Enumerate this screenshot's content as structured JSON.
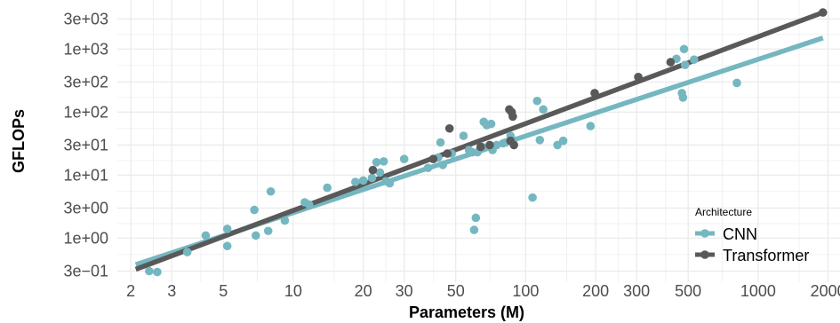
{
  "chart_data": {
    "type": "scatter",
    "xlabel": "Parameters (M)",
    "ylabel": "GFLOPs",
    "x_scale": "log",
    "y_scale": "log",
    "xlim": [
      1.75,
      2250
    ],
    "ylim": [
      0.2,
      6000
    ],
    "grid": true,
    "legend_title": "Architecture",
    "legend_position": "bottom-right",
    "x_ticks": [
      {
        "value": 2,
        "label": "2"
      },
      {
        "value": 3,
        "label": "3"
      },
      {
        "value": 5,
        "label": "5"
      },
      {
        "value": 10,
        "label": "10"
      },
      {
        "value": 20,
        "label": "20"
      },
      {
        "value": 30,
        "label": "30"
      },
      {
        "value": 50,
        "label": "50"
      },
      {
        "value": 100,
        "label": "100"
      },
      {
        "value": 200,
        "label": "200"
      },
      {
        "value": 300,
        "label": "300"
      },
      {
        "value": 500,
        "label": "500"
      },
      {
        "value": 1000,
        "label": "1000"
      },
      {
        "value": 2000,
        "label": "2000"
      }
    ],
    "y_ticks": [
      {
        "value": 0.3,
        "label": "3e−01"
      },
      {
        "value": 1,
        "label": "1e+00"
      },
      {
        "value": 3,
        "label": "3e+00"
      },
      {
        "value": 10,
        "label": "1e+01"
      },
      {
        "value": 30,
        "label": "3e+01"
      },
      {
        "value": 100,
        "label": "1e+02"
      },
      {
        "value": 300,
        "label": "3e+02"
      },
      {
        "value": 1000,
        "label": "1e+03"
      },
      {
        "value": 3000,
        "label": "3e+03"
      }
    ],
    "series": [
      {
        "name": "CNN",
        "color": "#75b7c0",
        "trend": [
          [
            2.1,
            0.38
          ],
          [
            1900,
            1500
          ]
        ],
        "points": [
          [
            2.4,
            0.3
          ],
          [
            2.6,
            0.29
          ],
          [
            3.5,
            0.6
          ],
          [
            4.2,
            1.1
          ],
          [
            5.2,
            1.4
          ],
          [
            5.2,
            0.75
          ],
          [
            6.8,
            2.8
          ],
          [
            6.9,
            1.1
          ],
          [
            7.8,
            1.3
          ],
          [
            8.0,
            5.5
          ],
          [
            9.2,
            1.9
          ],
          [
            11.2,
            3.7
          ],
          [
            11.7,
            3.4
          ],
          [
            14.0,
            6.3
          ],
          [
            18.5,
            7.8
          ],
          [
            20.0,
            8.2
          ],
          [
            21.8,
            9.0
          ],
          [
            22.8,
            16.0
          ],
          [
            23.6,
            11.0
          ],
          [
            24.5,
            16.5
          ],
          [
            25.0,
            8.0
          ],
          [
            26.0,
            7.4
          ],
          [
            30.0,
            18.0
          ],
          [
            38.0,
            13.0
          ],
          [
            42.0,
            19.0
          ],
          [
            43.0,
            33.0
          ],
          [
            44.0,
            14.5
          ],
          [
            48.0,
            22.0
          ],
          [
            54.0,
            42.0
          ],
          [
            57.0,
            25.0
          ],
          [
            59.0,
            23.0
          ],
          [
            60.0,
            1.35
          ],
          [
            61.0,
            2.1
          ],
          [
            62.0,
            23.0
          ],
          [
            64.0,
            28.0
          ],
          [
            65.0,
            28.0
          ],
          [
            66.0,
            70.0
          ],
          [
            68.0,
            62.0
          ],
          [
            71.0,
            65.0
          ],
          [
            72.0,
            25.0
          ],
          [
            75.0,
            30.0
          ],
          [
            80.0,
            32.0
          ],
          [
            82.0,
            33.0
          ],
          [
            86.0,
            42.0
          ],
          [
            88.0,
            36.0
          ],
          [
            107.0,
            4.4
          ],
          [
            112.0,
            150.0
          ],
          [
            115.0,
            36.0
          ],
          [
            119.0,
            110.0
          ],
          [
            137.0,
            30.0
          ],
          [
            145.0,
            35.0
          ],
          [
            190.0,
            60.0
          ],
          [
            445.0,
            700.0
          ],
          [
            470.0,
            200.0
          ],
          [
            475.0,
            170.0
          ],
          [
            480.0,
            1000.0
          ],
          [
            485.0,
            560.0
          ],
          [
            530.0,
            680.0
          ],
          [
            810.0,
            290.0
          ]
        ]
      },
      {
        "name": "Transformer",
        "color": "#595959",
        "trend": [
          [
            2.1,
            0.32
          ],
          [
            1900,
            3800
          ]
        ],
        "points": [
          [
            22.0,
            12.0
          ],
          [
            40.0,
            18.0
          ],
          [
            46.0,
            22.0
          ],
          [
            47.0,
            55.0
          ],
          [
            64.0,
            28.0
          ],
          [
            70.0,
            30.0
          ],
          [
            85.0,
            110.0
          ],
          [
            86.0,
            35.0
          ],
          [
            87.0,
            100.0
          ],
          [
            88.0,
            85.0
          ],
          [
            89.0,
            30.0
          ],
          [
            198.0,
            200.0
          ],
          [
            305.0,
            360.0
          ],
          [
            420.0,
            620.0
          ],
          [
            1900,
            3800
          ]
        ]
      }
    ]
  }
}
